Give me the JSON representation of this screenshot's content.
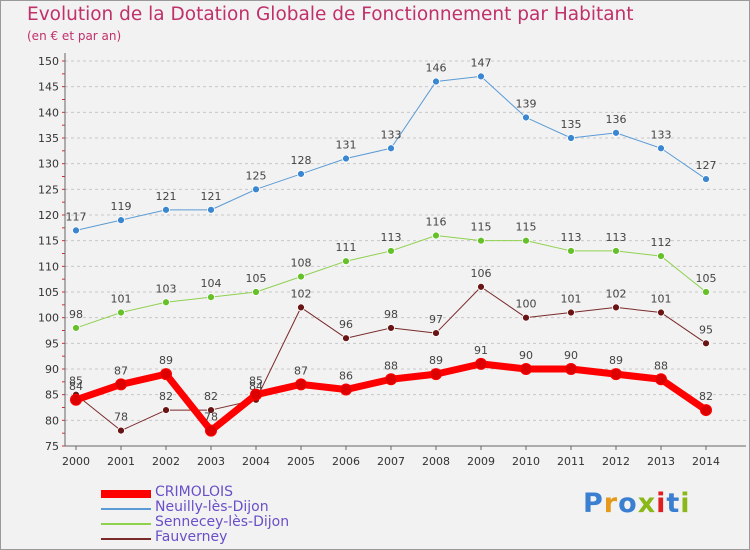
{
  "header": {
    "title": "Evolution de la Dotation Globale de Fonctionnement par Habitant",
    "subtitle": "(en € et par an)"
  },
  "brand": {
    "letters": [
      "P",
      "r",
      "o",
      "x",
      "i",
      "t",
      "i"
    ],
    "colors": [
      "#3a7fd0",
      "#e69a1c",
      "#3a7fd0",
      "#8ab818",
      "#e02020",
      "#3a7fd0",
      "#8ab818"
    ]
  },
  "chart_data": {
    "type": "line",
    "title": "Evolution de la Dotation Globale de Fonctionnement par Habitant",
    "subtitle": "(en € et par an)",
    "xlabel": "",
    "ylabel": "",
    "categories": [
      "2000",
      "2001",
      "2002",
      "2003",
      "2004",
      "2005",
      "2006",
      "2007",
      "2008",
      "2009",
      "2010",
      "2011",
      "2012",
      "2013",
      "2014"
    ],
    "ylim": [
      75,
      150
    ],
    "yticks": [
      75,
      80,
      85,
      90,
      95,
      100,
      105,
      110,
      115,
      120,
      125,
      130,
      135,
      140,
      145,
      150
    ],
    "grid": "horizontal dashed",
    "legend_position": "bottom-left",
    "series": [
      {
        "name": "CRIMOLOIS",
        "color": "#ff0000",
        "point_color": "#dd0000",
        "width": 7,
        "values": [
          84,
          87,
          89,
          78,
          85,
          87,
          86,
          88,
          89,
          91,
          90,
          90,
          89,
          88,
          82
        ]
      },
      {
        "name": "Neuilly-lès-Dijon",
        "color": "#5b9bd5",
        "point_color": "#3a86d1",
        "width": 1,
        "values": [
          117,
          119,
          121,
          121,
          125,
          128,
          131,
          133,
          146,
          147,
          139,
          135,
          136,
          133,
          127
        ]
      },
      {
        "name": "Sennecey-lès-Dijon",
        "color": "#8fd14f",
        "point_color": "#66c02a",
        "width": 1,
        "values": [
          98,
          101,
          103,
          104,
          105,
          108,
          111,
          113,
          116,
          115,
          115,
          113,
          113,
          112,
          105
        ]
      },
      {
        "name": "Fauverney",
        "color": "#7a2a2a",
        "point_color": "#6a1515",
        "width": 1,
        "values": [
          85,
          78,
          82,
          82,
          84,
          102,
          96,
          98,
          97,
          106,
          100,
          101,
          102,
          101,
          95
        ]
      }
    ]
  }
}
